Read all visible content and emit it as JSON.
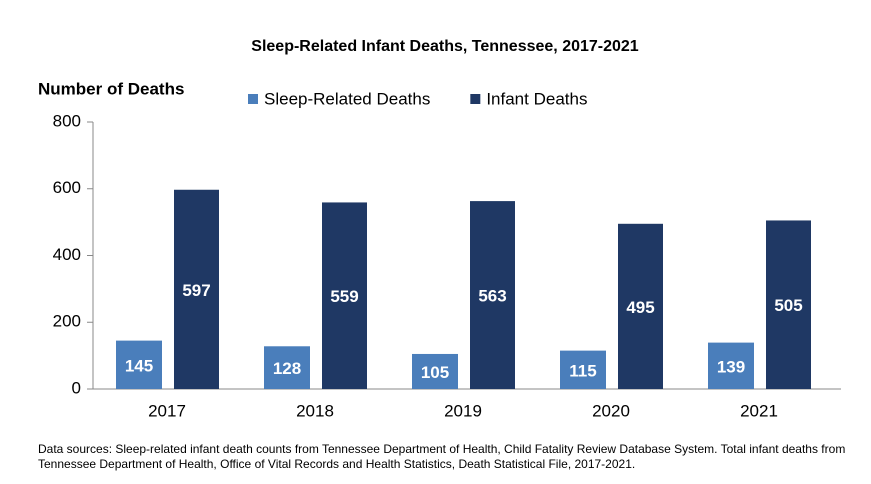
{
  "chart_data": {
    "type": "bar",
    "title": "Sleep-Related Infant Deaths, Tennessee, 2017-2021",
    "y_label": "Number of Deaths",
    "categories": [
      "2017",
      "2018",
      "2019",
      "2020",
      "2021"
    ],
    "series": [
      {
        "name": "Sleep-Related Deaths",
        "color": "#4a7ebb",
        "values": [
          145,
          128,
          105,
          115,
          139
        ]
      },
      {
        "name": "Infant Deaths",
        "color": "#1f3864",
        "values": [
          597,
          559,
          563,
          495,
          505
        ]
      }
    ],
    "ylim": [
      0,
      800
    ],
    "yticks": [
      0,
      200,
      400,
      600,
      800
    ],
    "note": "Data sources: Sleep-related infant death counts from Tennessee Department of Health, Child Fatality Review Database System. Total infant deaths from Tennessee Department of Health, Office of Vital Records and Health Statistics, Death Statistical File, 2017-2021."
  }
}
